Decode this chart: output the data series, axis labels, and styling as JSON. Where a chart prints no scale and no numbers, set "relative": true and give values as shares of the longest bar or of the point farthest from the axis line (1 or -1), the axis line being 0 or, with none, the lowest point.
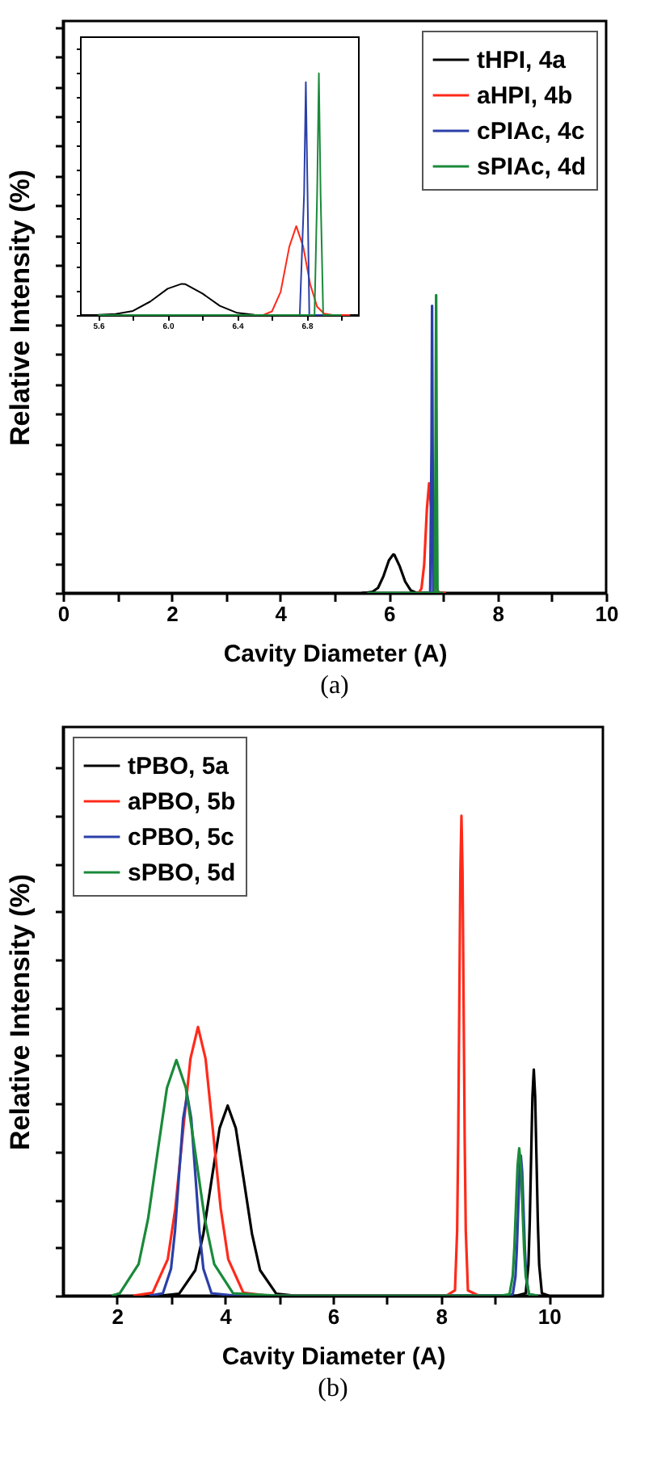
{
  "chart_data": [
    {
      "type": "line",
      "relative": true,
      "xlabel": "Cavity Diameter (A)",
      "ylabel": "Relative Intensity (%)",
      "xlim": [
        0,
        10
      ],
      "xticks": [
        0,
        {
          "value": 1,
          "label": null
        },
        2,
        {
          "value": 3,
          "label": null
        },
        4,
        {
          "value": 5,
          "label": null
        },
        6,
        {
          "value": 7,
          "label": null
        },
        8,
        {
          "value": 9,
          "label": null
        },
        10
      ],
      "grid": false,
      "legend": "top right",
      "annotations": [
        "(a)"
      ],
      "series": [
        {
          "name": "tHPI, 4a",
          "color": "#000000",
          "x": [
            5.5,
            5.6,
            5.7,
            5.8,
            5.9,
            6.0,
            6.08,
            6.1,
            6.2,
            6.3,
            6.4,
            6.5,
            6.6,
            7.0
          ],
          "values": [
            0,
            0.001,
            0.004,
            0.017,
            0.056,
            0.109,
            0.129,
            0.128,
            0.089,
            0.038,
            0.009,
            0.001,
            0,
            0
          ]
        },
        {
          "name": "aHPI, 4b",
          "color": "#ff2a1a",
          "x": [
            6.5,
            6.55,
            6.6,
            6.65,
            6.7,
            6.74,
            6.78,
            6.82,
            6.86,
            6.9,
            6.95,
            7.05
          ],
          "values": [
            0,
            0,
            0.015,
            0.096,
            0.283,
            0.368,
            0.283,
            0.128,
            0.034,
            0.006,
            0,
            0
          ]
        },
        {
          "name": "cPIAc, 4c",
          "color": "#2b3fa8",
          "x": [
            6.7,
            6.76,
            6.785,
            6.795,
            6.805,
            6.815,
            6.9
          ],
          "values": [
            0,
            0,
            0.5,
            0.964,
            0.5,
            0,
            0
          ]
        },
        {
          "name": "sPIAc, 4d",
          "color": "#1a8a3a",
          "x": [
            5.6,
            6.845,
            6.86,
            6.87,
            6.88,
            6.895,
            7.0
          ],
          "values": [
            0,
            0,
            0.5,
            1,
            0.5,
            0,
            0
          ]
        }
      ]
    },
    {
      "type": "line",
      "relative": true,
      "xlim": [
        5.5,
        7.1
      ],
      "xticks": [
        5.6,
        {
          "value": 5.8,
          "label": null
        },
        {
          "value": 6.0,
          "label": "6.0"
        },
        {
          "value": 6.2,
          "label": null
        },
        6.4,
        {
          "value": 6.6,
          "label": null
        },
        6.8,
        {
          "value": 7.0,
          "label": null
        }
      ],
      "grid": false,
      "tick_labels": "x",
      "series": [
        {
          "color": "#000000",
          "x": [
            5.5,
            5.6,
            5.7,
            5.8,
            5.9,
            6.0,
            6.08,
            6.1,
            6.2,
            6.3,
            6.4,
            6.5,
            6.6,
            7.0
          ],
          "values": [
            0,
            0.001,
            0.004,
            0.017,
            0.056,
            0.109,
            0.129,
            0.128,
            0.089,
            0.038,
            0.009,
            0.001,
            0,
            0
          ]
        },
        {
          "color": "#ff2a1a",
          "x": [
            6.5,
            6.55,
            6.6,
            6.65,
            6.7,
            6.74,
            6.78,
            6.82,
            6.86,
            6.9,
            6.95,
            7.05
          ],
          "values": [
            0,
            0,
            0.015,
            0.096,
            0.283,
            0.368,
            0.283,
            0.128,
            0.034,
            0.006,
            0,
            0
          ]
        },
        {
          "color": "#2b3fa8",
          "x": [
            6.7,
            6.76,
            6.785,
            6.795,
            6.805,
            6.815,
            6.9
          ],
          "values": [
            0,
            0,
            0.5,
            0.964,
            0.5,
            0,
            0
          ]
        },
        {
          "color": "#1a8a3a",
          "x": [
            5.6,
            6.845,
            6.86,
            6.87,
            6.88,
            6.895,
            7.0
          ],
          "values": [
            0,
            0,
            0.5,
            1,
            0.5,
            0,
            0
          ]
        }
      ]
    },
    {
      "type": "line",
      "relative": true,
      "xlabel": "Cavity Diameter (A)",
      "ylabel": "Relative Intensity (%)",
      "xlim": [
        1,
        11
      ],
      "xticks": [
        2,
        {
          "value": 3,
          "label": null
        },
        4,
        {
          "value": 5,
          "label": null
        },
        6,
        {
          "value": 7,
          "label": null
        },
        8,
        {
          "value": 9,
          "label": null
        },
        10
      ],
      "grid": false,
      "legend": "top left",
      "annotations": [
        "(b)"
      ],
      "series": [
        {
          "name": "tPBO, 5a",
          "color": "#000000",
          "x": [
            2.8,
            3.15,
            3.45,
            3.6,
            3.75,
            3.9,
            4.05,
            4.2,
            4.35,
            4.5,
            4.65,
            4.95,
            5.3,
            9.4,
            9.57,
            9.62,
            9.645,
            9.67,
            9.695,
            9.72,
            9.745,
            9.77,
            9.795,
            9.82,
            9.87,
            10.0
          ],
          "values": [
            0,
            0.004,
            0.053,
            0.129,
            0.24,
            0.349,
            0.396,
            0.349,
            0.24,
            0.129,
            0.053,
            0.004,
            0,
            0,
            0.005,
            0.064,
            0.153,
            0.286,
            0.415,
            0.471,
            0.415,
            0.286,
            0.153,
            0.064,
            0.005,
            0
          ]
        },
        {
          "name": "aPBO, 5b",
          "color": "#ff2a1a",
          "x": [
            2.3,
            2.66,
            2.94,
            3.08,
            3.22,
            3.36,
            3.5,
            3.64,
            3.78,
            3.92,
            4.06,
            4.34,
            4.8,
            8.1,
            8.26,
            8.3,
            8.32,
            8.34,
            8.36,
            8.38,
            8.4,
            8.42,
            8.44,
            8.46,
            8.5,
            8.7
          ],
          "values": [
            0,
            0.006,
            0.076,
            0.182,
            0.34,
            0.494,
            0.56,
            0.494,
            0.34,
            0.182,
            0.076,
            0.006,
            0,
            0,
            0.011,
            0.135,
            0.325,
            0.607,
            0.882,
            1,
            0.882,
            0.607,
            0.325,
            0.135,
            0.011,
            0
          ]
        },
        {
          "name": "cPBO, 5c",
          "color": "#2b3fa8",
          "x": [
            2.6,
            2.85,
            3.0,
            3.075,
            3.15,
            3.225,
            3.3,
            3.375,
            3.45,
            3.525,
            3.6,
            3.75,
            4.2,
            9.2,
            9.33,
            9.38,
            9.405,
            9.43,
            9.455,
            9.48,
            9.505,
            9.53,
            9.555,
            9.58,
            9.63,
            9.8
          ],
          "values": [
            0,
            0.005,
            0.056,
            0.136,
            0.254,
            0.369,
            0.418,
            0.369,
            0.254,
            0.136,
            0.056,
            0.005,
            0,
            0,
            0.003,
            0.039,
            0.095,
            0.177,
            0.258,
            0.292,
            0.258,
            0.177,
            0.095,
            0.039,
            0.003,
            0
          ]
        },
        {
          "name": "sPBO, 5d",
          "color": "#1a8a3a",
          "x": [
            1.9,
            2.05,
            2.4,
            2.575,
            2.75,
            2.925,
            3.1,
            3.275,
            3.45,
            3.625,
            3.8,
            4.15,
            5.0,
            9.1,
            9.27,
            9.33,
            9.36,
            9.39,
            9.42,
            9.45,
            9.48,
            9.51,
            9.54,
            9.57,
            9.63,
            9.8
          ],
          "values": [
            0,
            0.005,
            0.066,
            0.16,
            0.298,
            0.433,
            0.491,
            0.433,
            0.298,
            0.16,
            0.066,
            0.005,
            0,
            0,
            0.003,
            0.041,
            0.1,
            0.186,
            0.271,
            0.307,
            0.271,
            0.186,
            0.1,
            0.041,
            0.003,
            0
          ]
        }
      ]
    }
  ]
}
